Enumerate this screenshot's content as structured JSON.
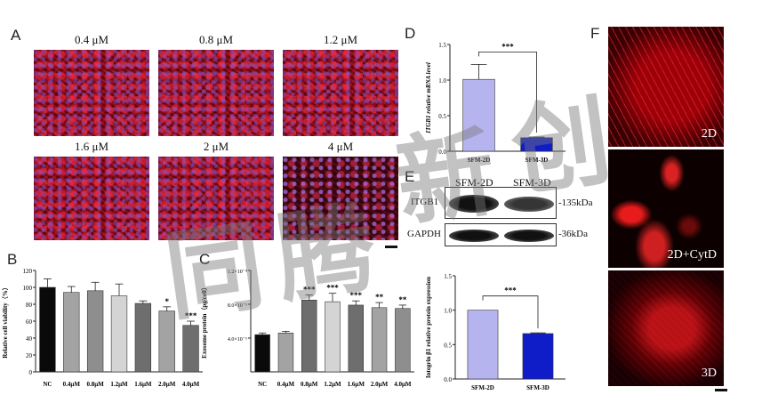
{
  "panel_letters": [
    "A",
    "B",
    "C",
    "D",
    "E",
    "F"
  ],
  "panel_a": {
    "concentrations": [
      "0.4 μM",
      "0.8 μM",
      "1.2 μM",
      "1.6 μM",
      "2 μM",
      "4 μM"
    ]
  },
  "panel_e": {
    "columns": [
      "SFM-2D",
      "SFM-3D"
    ],
    "rows": [
      "ITGB1",
      "GAPDH"
    ],
    "sizes": [
      "-135kDa",
      "-36kDa"
    ]
  },
  "panel_f": {
    "labels": [
      "2D",
      "2D+CytD",
      "3D"
    ]
  },
  "watermark": [
    "同",
    "腾",
    "新",
    "创"
  ],
  "colors": {
    "bar_black": "#0a0a0a",
    "bar_grey": "#a3a3a3",
    "bar_dark": "#6f6f6f",
    "bar_light": "#d9d9d9",
    "bar_lavender": "#b6b4ee",
    "bar_blue": "#0f1dc8"
  },
  "chart_data": [
    {
      "id": "B",
      "type": "bar",
      "ylabel": "Relative cell viability（%）",
      "ylim": [
        0,
        120
      ],
      "yticks": [
        0,
        20,
        40,
        60,
        80,
        100,
        120
      ],
      "categories": [
        "NC",
        "0.4μM",
        "0.8μM",
        "1.2μM",
        "1.6μM",
        "2.0μM",
        "4.0μM"
      ],
      "values": [
        100,
        94,
        96,
        90,
        81,
        72,
        55
      ],
      "errors": [
        10,
        7,
        10,
        14,
        3,
        5,
        5
      ],
      "significance": [
        "",
        "",
        "",
        "",
        "",
        "*",
        "***"
      ],
      "colors": [
        "#0a0a0a",
        "#a3a3a3",
        "#8e8e8e",
        "#d4d4d4",
        "#6e6e6e",
        "#a3a3a3",
        "#6e6e6e"
      ]
    },
    {
      "id": "C",
      "type": "bar",
      "ylabel": "Exosome protein（pg/cell）",
      "ylim": [
        0,
        0.00012
      ],
      "yticks": [
        4e-05,
        8e-05,
        0.00012
      ],
      "ytick_labels": [
        "4.0×10⁻⁵",
        "8.0×10⁻⁵",
        "1.2×10⁻⁴"
      ],
      "categories": [
        "NC",
        "0.4μM",
        "0.8μM",
        "1.2μM",
        "1.6μM",
        "2.0μM",
        "4.0μM"
      ],
      "values": [
        4.4e-05,
        4.6e-05,
        8.5e-05,
        8.3e-05,
        7.9e-05,
        7.6e-05,
        7.5e-05
      ],
      "errors": [
        2e-06,
        2e-06,
        6e-06,
        1e-05,
        5e-06,
        6e-06,
        4e-06
      ],
      "significance": [
        "",
        "",
        "***",
        "***",
        "***",
        "**",
        "**"
      ],
      "colors": [
        "#0a0a0a",
        "#a3a3a3",
        "#6e6e6e",
        "#d4d4d4",
        "#6e6e6e",
        "#a3a3a3",
        "#8e8e8e"
      ]
    },
    {
      "id": "D",
      "type": "bar",
      "ylabel": "ITGB1 relative mRNA level",
      "ylim": [
        0,
        1.5
      ],
      "yticks": [
        0.0,
        0.5,
        1.0,
        1.5
      ],
      "categories": [
        "SFM-2D",
        "SFM-3D"
      ],
      "values": [
        1.01,
        0.19
      ],
      "errors": [
        0.21,
        0.01
      ],
      "significance_bracket": "***",
      "colors": [
        "#b6b4ee",
        "#0f1dc8"
      ]
    },
    {
      "id": "E",
      "type": "bar",
      "ylabel": "Integrin β1 relative protein expression",
      "ylim": [
        0,
        1.5
      ],
      "yticks": [
        0.0,
        0.5,
        1.0,
        1.5
      ],
      "categories": [
        "SFM-2D",
        "SFM-3D"
      ],
      "values": [
        1.0,
        0.66
      ],
      "errors": [
        0.0,
        0.01
      ],
      "significance_bracket": "***",
      "colors": [
        "#b6b4ee",
        "#0f1dc8"
      ]
    }
  ]
}
